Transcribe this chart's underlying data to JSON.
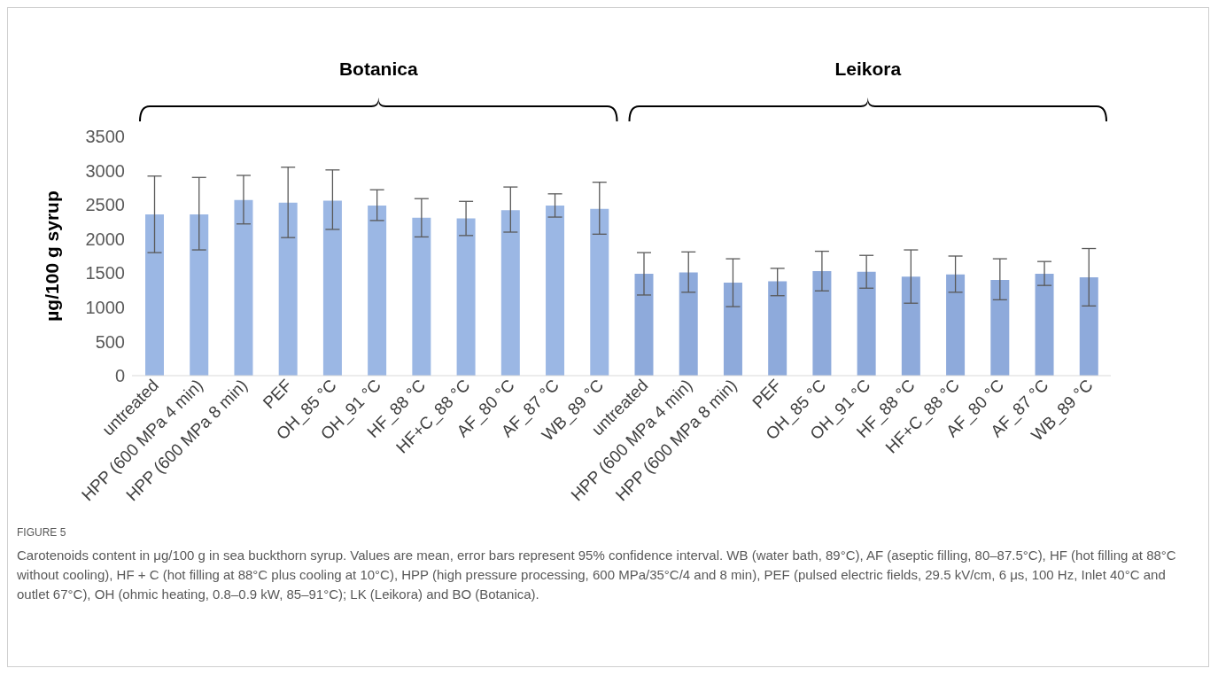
{
  "chart_data": {
    "type": "bar",
    "ylabel": "µg/100 g syrup",
    "categories": [
      "untreated",
      "HPP (600 MPa 4 min)",
      "HPP (600 MPa 8 min)",
      "PEF",
      "OH_85 °C",
      "OH_91 °C",
      "HF_88 °C",
      "HF+C_88 °C",
      "AF_80 °C",
      "AF_87 °C",
      "WB_89 °C",
      "untreated",
      "HPP (600 MPa 4 min)",
      "HPP (600 MPa 8 min)",
      "PEF",
      "OH_85 °C",
      "OH_91 °C",
      "HF_88 °C",
      "HF+C_88 °C",
      "AF_80 °C",
      "AF_87 °C",
      "WB_89 °C"
    ],
    "values": [
      2360,
      2360,
      2570,
      2530,
      2560,
      2490,
      2310,
      2300,
      2420,
      2490,
      2440,
      1490,
      1510,
      1360,
      1380,
      1530,
      1520,
      1450,
      1480,
      1400,
      1490,
      1440
    ],
    "errors": [
      [
        1800,
        2920
      ],
      [
        1840,
        2900
      ],
      [
        2220,
        2930
      ],
      [
        2020,
        3050
      ],
      [
        2140,
        3010
      ],
      [
        2270,
        2720
      ],
      [
        2030,
        2590
      ],
      [
        2050,
        2550
      ],
      [
        2100,
        2760
      ],
      [
        2320,
        2660
      ],
      [
        2070,
        2830
      ],
      [
        1180,
        1800
      ],
      [
        1220,
        1810
      ],
      [
        1010,
        1710
      ],
      [
        1170,
        1570
      ],
      [
        1240,
        1820
      ],
      [
        1280,
        1760
      ],
      [
        1060,
        1840
      ],
      [
        1220,
        1750
      ],
      [
        1110,
        1710
      ],
      [
        1320,
        1670
      ],
      [
        1020,
        1860
      ]
    ],
    "colors": [
      "#9bb7e4",
      "#9bb7e4",
      "#9bb7e4",
      "#9bb7e4",
      "#9bb7e4",
      "#9bb7e4",
      "#9bb7e4",
      "#9bb7e4",
      "#9bb7e4",
      "#9bb7e4",
      "#9bb7e4",
      "#8eaadb",
      "#8eaadb",
      "#8eaadb",
      "#8eaadb",
      "#8eaadb",
      "#8eaadb",
      "#8eaadb",
      "#8eaadb",
      "#8eaadb",
      "#8eaadb",
      "#8eaadb"
    ],
    "ylim": [
      0,
      3500
    ],
    "yticks": [
      0,
      500,
      1000,
      1500,
      2000,
      2500,
      3000,
      3500
    ],
    "grid": false,
    "legend": false,
    "annotations": [
      "Botanica",
      "Leikora",
      "FIGURE 5",
      "Carotenoids content in μg/100 g in sea buckthorn syrup. Values are mean, error bars represent 95% confidence interval. WB (water bath, 89°C), AF (aseptic filling, 80–87.5°C), HF (hot filling at 88°C without cooling), HF + C (hot filling at 88°C plus cooling at 10°C), HPP (high pressure processing, 600 MPa/35°C/4 and 8 min), PEF (pulsed electric fields, 29.5 kV/cm, 6 μs, 100 Hz, Inlet 40°C and outlet 67°C), OH (ohmic heating, 0.8–0.9 kW, 85–91°C); LK (Leikora) and BO (Botanica)."
    ]
  }
}
